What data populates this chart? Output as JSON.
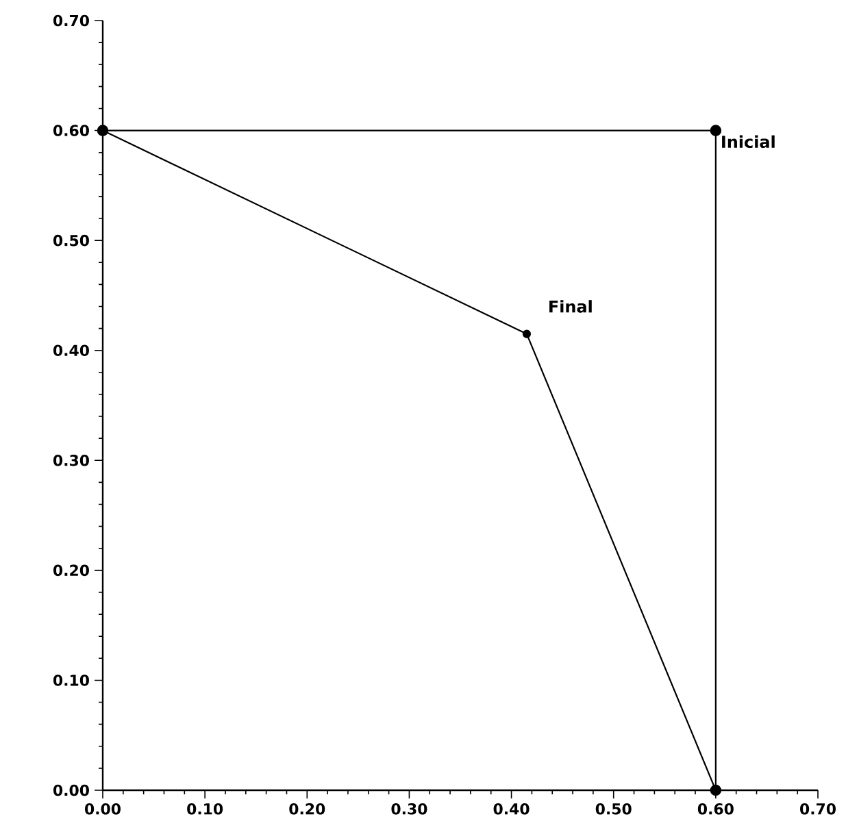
{
  "chart_data": {
    "type": "line",
    "xlim": [
      0,
      0.7
    ],
    "ylim": [
      0,
      0.7
    ],
    "xticks": [
      {
        "value": 0,
        "label": "0.00"
      },
      {
        "value": 0.1,
        "label": "0.10"
      },
      {
        "value": 0.2,
        "label": "0.20"
      },
      {
        "value": 0.3,
        "label": "0.30"
      },
      {
        "value": 0.4,
        "label": "0.40"
      },
      {
        "value": 0.5,
        "label": "0.50"
      },
      {
        "value": 0.6,
        "label": "0.60"
      },
      {
        "value": 0.7,
        "label": "0.70"
      }
    ],
    "yticks": [
      {
        "value": 0,
        "label": "0.00"
      },
      {
        "value": 0.1,
        "label": "0.10"
      },
      {
        "value": 0.2,
        "label": "0.20"
      },
      {
        "value": 0.3,
        "label": "0.30"
      },
      {
        "value": 0.4,
        "label": "0.40"
      },
      {
        "value": 0.5,
        "label": "0.50"
      },
      {
        "value": 0.6,
        "label": "0.60"
      },
      {
        "value": 0.7,
        "label": "0.70"
      }
    ],
    "marker": "circle",
    "line_style": "solid",
    "series": [
      {
        "name": "Inicial",
        "color": "#000000",
        "x": [
          0,
          0.6,
          0.6
        ],
        "values": [
          0.6,
          0.6,
          0
        ]
      },
      {
        "name": "Final",
        "color": "#000000",
        "x": [
          0,
          0.415,
          0.6
        ],
        "values": [
          0.6,
          0.415,
          0
        ]
      }
    ]
  }
}
